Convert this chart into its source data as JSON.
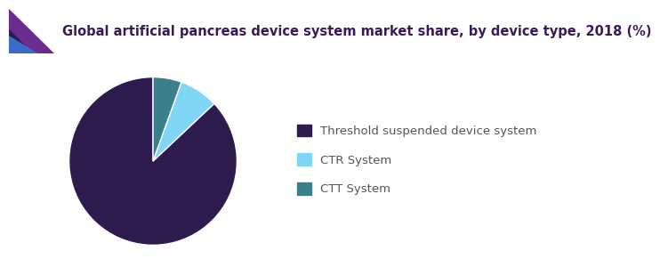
{
  "title": "Global artificial pancreas device system market share, by device type, 2018 (%)",
  "slices": [
    87.0,
    7.5,
    5.5
  ],
  "labels": [
    "Threshold suspended device system",
    "CTR System",
    "CTT System"
  ],
  "colors": [
    "#2d1b4e",
    "#7fd7f5",
    "#3a7f8c"
  ],
  "startangle": 90,
  "background_color": "#ffffff",
  "title_color": "#3b1a5a",
  "title_fontsize": 10.5,
  "legend_fontsize": 9.5,
  "legend_text_color": "#555555",
  "accent_purple": "#6b2c8f",
  "accent_blue": "#3a6bc8",
  "accent_darkpurple": "#2d1b4e",
  "header_line_color": "#7b2d8b",
  "header_bg": "#f5f5f5"
}
